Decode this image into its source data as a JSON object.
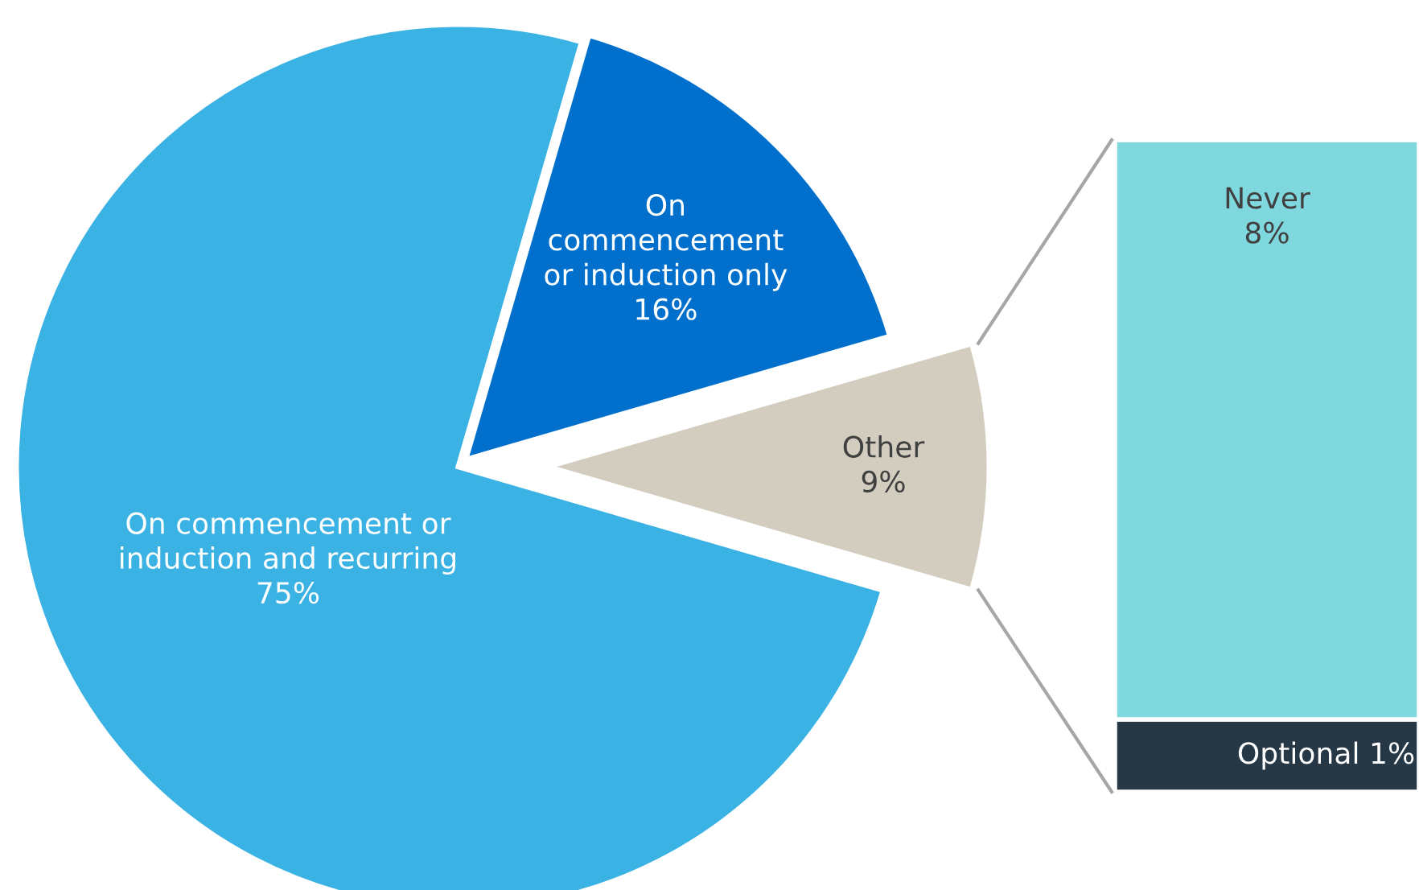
{
  "chart_data": [
    {
      "type": "pie",
      "categories": [
        "On commencement or\ninduction and recurring",
        "On\ncommencement\nor induction only",
        "Other"
      ],
      "values": [
        75,
        16,
        9
      ],
      "colors": [
        "#3bb2e4",
        "#0070cc",
        "#d3cdbf"
      ],
      "value_labels": [
        "75%",
        "16%",
        "9%"
      ]
    },
    {
      "type": "bar",
      "stacked": true,
      "categories": [
        null
      ],
      "tick_labels": false,
      "series": [
        {
          "name": "Optional",
          "color": "#263746",
          "values": [
            1
          ],
          "value_labels": [
            "1%"
          ]
        },
        {
          "name": "Never",
          "color": "#80d8df",
          "values": [
            8
          ],
          "value_labels": [
            "8%"
          ]
        }
      ]
    }
  ]
}
